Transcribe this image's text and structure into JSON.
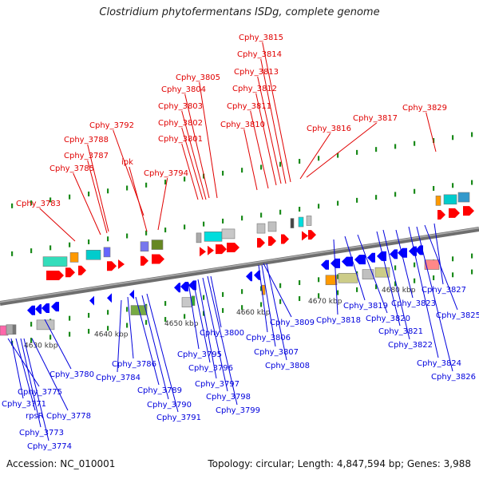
{
  "title": "Clostridium phytofermentans ISDg, complete genome",
  "footer": {
    "accession": "Accession: NC_010001",
    "summary": "Topology: circular; Length: 4,847,594 bp; Genes: 3,988"
  },
  "colors": {
    "top_label": "#e00000",
    "bottom_label": "#0000dd",
    "backbone": "#808080",
    "forward_gene": "#ff0000",
    "reverse_gene": "#0000ff",
    "tick": "#1a8a1a"
  },
  "scale_labels": [
    "4630 kbp",
    "4640 kbp",
    "4650 kbp",
    "4660 kbp",
    "4670 kbp",
    "4680 kbp"
  ],
  "top_labels": [
    "Cphy_3783",
    "Cphy_3785",
    "Cphy_3787",
    "Cphy_3788",
    "Cphy_3792",
    "ipk",
    "Cphy_3794",
    "Cphy_3801",
    "Cphy_3802",
    "Cphy_3803",
    "Cphy_3804",
    "Cphy_3805",
    "Cphy_3810",
    "Cphy_3811",
    "Cphy_3812",
    "Cphy_3813",
    "Cphy_3814",
    "Cphy_3815",
    "Cphy_3816",
    "Cphy_3817",
    "Cphy_3829"
  ],
  "bottom_labels": [
    "Cphy_3775",
    "Cphy_3771",
    "rpsR",
    "Cphy_3773",
    "Cphy_3774",
    "Cphy_3778",
    "Cphy_3780",
    "Cphy_3784",
    "Cphy_3786",
    "Cphy_3789",
    "Cphy_3790",
    "Cphy_3791",
    "Cphy_3795",
    "Cphy_3796",
    "Cphy_3797",
    "Cphy_3798",
    "Cphy_3799",
    "Cphy_3800",
    "Cphy_3806",
    "Cphy_3807",
    "Cphy_3808",
    "Cphy_3809",
    "Cphy_3818",
    "Cphy_3819",
    "Cphy_3820",
    "Cphy_3821",
    "Cphy_3822",
    "Cphy_3823",
    "Cphy_3824",
    "Cphy_3825",
    "Cphy_3826",
    "Cphy_3827"
  ]
}
